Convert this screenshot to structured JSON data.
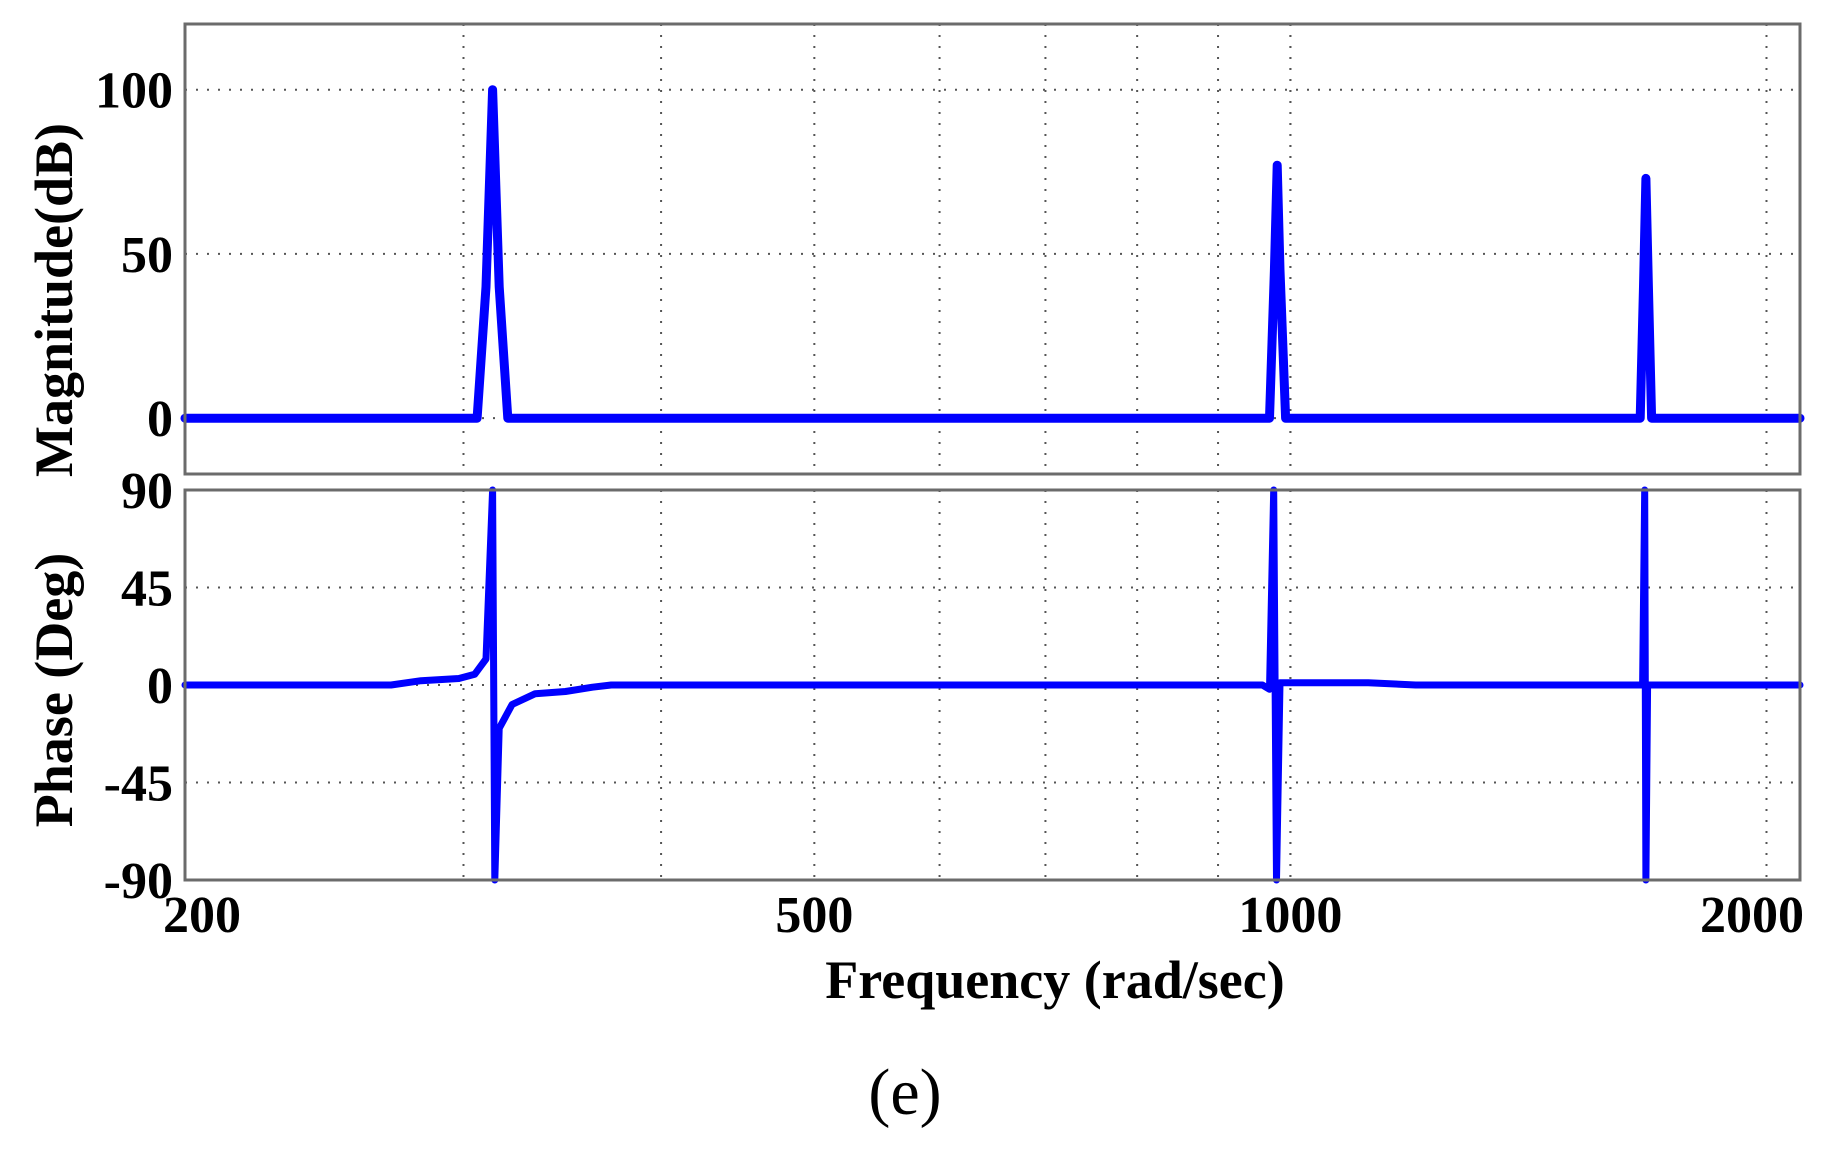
{
  "chart_data": {
    "type": "line",
    "x_scale": "log",
    "xlim": [
      200,
      2100
    ],
    "xlabel": "Frequency (rad/sec)",
    "xticks": [
      200,
      500,
      1000,
      2000
    ],
    "x_gridlines": [
      300,
      400,
      600,
      700,
      800,
      900,
      1000
    ],
    "grid": true,
    "caption": "(e)",
    "line_color": "#0000ff",
    "panels": [
      {
        "name": "magnitude",
        "ylabel": "Magnitude(dB)",
        "ylim": [
          -17,
          120
        ],
        "yticks": [
          0,
          50,
          100
        ],
        "points": [
          [
            200,
            0
          ],
          [
            306,
            0
          ],
          [
            310,
            40
          ],
          [
            313,
            100
          ],
          [
            316,
            40
          ],
          [
            320,
            0
          ],
          [
            970,
            0
          ],
          [
            977,
            45
          ],
          [
            981,
            77
          ],
          [
            985,
            45
          ],
          [
            993,
            0
          ],
          [
            1664,
            0
          ],
          [
            1672,
            40
          ],
          [
            1678,
            73
          ],
          [
            1684,
            40
          ],
          [
            1692,
            0
          ],
          [
            2100,
            0
          ]
        ]
      },
      {
        "name": "phase",
        "ylabel": "Phase (Deg)",
        "ylim": [
          -90,
          90
        ],
        "yticks": [
          90,
          45,
          0,
          -45,
          -90
        ],
        "points": [
          [
            200,
            0
          ],
          [
            270,
            0
          ],
          [
            282,
            2
          ],
          [
            298,
            3
          ],
          [
            305,
            5
          ],
          [
            310,
            12
          ],
          [
            313,
            90
          ],
          [
            314,
            -90
          ],
          [
            316,
            -20
          ],
          [
            322,
            -9
          ],
          [
            333,
            -4
          ],
          [
            348,
            -3
          ],
          [
            362,
            -1
          ],
          [
            372,
            0
          ],
          [
            960,
            0
          ],
          [
            970,
            -2
          ],
          [
            976,
            90
          ],
          [
            980,
            -90
          ],
          [
            985,
            1
          ],
          [
            1000,
            1
          ],
          [
            1120,
            1
          ],
          [
            1200,
            0
          ],
          [
            1670,
            0
          ],
          [
            1675,
            90
          ],
          [
            1678,
            -90
          ],
          [
            1682,
            0
          ],
          [
            2100,
            0
          ]
        ]
      }
    ]
  }
}
